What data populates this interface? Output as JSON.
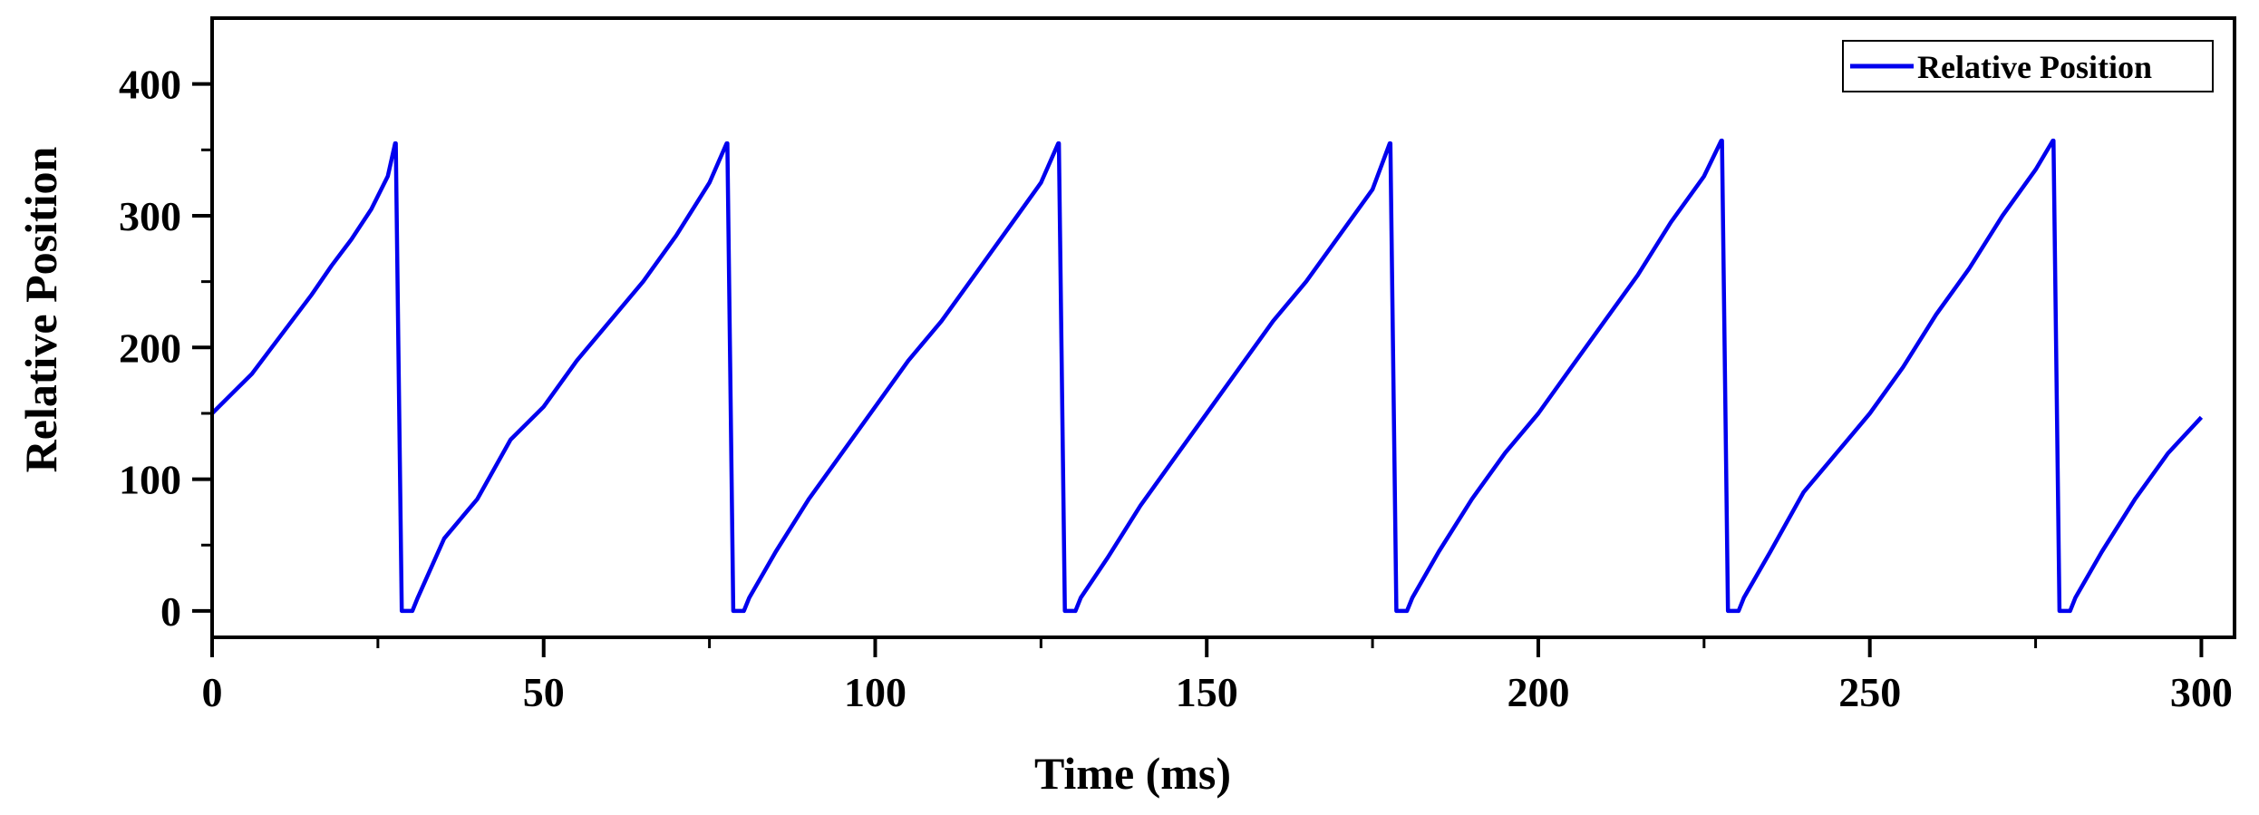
{
  "chart_data": {
    "type": "line",
    "title": "",
    "xlabel": "Time (ms)",
    "ylabel": "Relative Position",
    "xlim": [
      0,
      305
    ],
    "ylim": [
      -20,
      450
    ],
    "x_ticks": [
      0,
      50,
      100,
      150,
      200,
      250,
      300
    ],
    "x_tick_labels": [
      "0",
      "50",
      "100",
      "150",
      "200",
      "250",
      "300"
    ],
    "x_minor_ticks": [
      25,
      75,
      125,
      175,
      225,
      275
    ],
    "y_ticks": [
      0,
      100,
      200,
      300,
      400
    ],
    "y_tick_labels": [
      "0",
      "100",
      "200",
      "300",
      "400"
    ],
    "y_minor_ticks": [
      50,
      150,
      250,
      350
    ],
    "grid": false,
    "legend": {
      "position": "top-right",
      "entries": [
        "Relative Position"
      ]
    },
    "series": [
      {
        "name": "Relative Position",
        "color": "#0000ee",
        "points": [
          [
            0,
            150
          ],
          [
            3,
            165
          ],
          [
            6,
            180
          ],
          [
            9,
            200
          ],
          [
            12,
            220
          ],
          [
            15,
            240
          ],
          [
            18,
            262
          ],
          [
            21,
            282
          ],
          [
            24,
            305
          ],
          [
            26.5,
            330
          ],
          [
            27.6,
            355
          ],
          [
            27.7,
            355
          ],
          [
            28.6,
            0
          ],
          [
            30.2,
            0
          ],
          [
            31,
            10
          ],
          [
            35,
            55
          ],
          [
            40,
            85
          ],
          [
            45,
            130
          ],
          [
            50,
            155
          ],
          [
            55,
            190
          ],
          [
            60,
            220
          ],
          [
            65,
            250
          ],
          [
            70,
            285
          ],
          [
            75,
            325
          ],
          [
            77.6,
            355
          ],
          [
            77.7,
            355
          ],
          [
            78.6,
            0
          ],
          [
            80.2,
            0
          ],
          [
            81,
            10
          ],
          [
            85,
            45
          ],
          [
            90,
            85
          ],
          [
            95,
            120
          ],
          [
            100,
            155
          ],
          [
            105,
            190
          ],
          [
            110,
            220
          ],
          [
            115,
            255
          ],
          [
            120,
            290
          ],
          [
            125,
            325
          ],
          [
            127.6,
            355
          ],
          [
            127.7,
            355
          ],
          [
            128.6,
            0
          ],
          [
            130.2,
            0
          ],
          [
            131,
            10
          ],
          [
            135,
            40
          ],
          [
            140,
            80
          ],
          [
            145,
            115
          ],
          [
            150,
            150
          ],
          [
            155,
            185
          ],
          [
            160,
            220
          ],
          [
            165,
            250
          ],
          [
            170,
            285
          ],
          [
            175,
            320
          ],
          [
            177.6,
            355
          ],
          [
            177.7,
            355
          ],
          [
            178.6,
            0
          ],
          [
            180.2,
            0
          ],
          [
            181,
            10
          ],
          [
            185,
            45
          ],
          [
            190,
            85
          ],
          [
            195,
            120
          ],
          [
            200,
            150
          ],
          [
            205,
            185
          ],
          [
            210,
            220
          ],
          [
            215,
            255
          ],
          [
            220,
            295
          ],
          [
            225,
            330
          ],
          [
            227.6,
            357
          ],
          [
            227.7,
            357
          ],
          [
            228.6,
            0
          ],
          [
            230.2,
            0
          ],
          [
            231,
            10
          ],
          [
            235,
            45
          ],
          [
            240,
            90
          ],
          [
            245,
            120
          ],
          [
            250,
            150
          ],
          [
            255,
            185
          ],
          [
            260,
            225
          ],
          [
            265,
            260
          ],
          [
            270,
            300
          ],
          [
            275,
            335
          ],
          [
            277.6,
            357
          ],
          [
            277.7,
            357
          ],
          [
            278.6,
            0
          ],
          [
            280.2,
            0
          ],
          [
            281,
            10
          ],
          [
            285,
            45
          ],
          [
            290,
            85
          ],
          [
            295,
            120
          ],
          [
            300,
            147
          ]
        ]
      }
    ]
  }
}
